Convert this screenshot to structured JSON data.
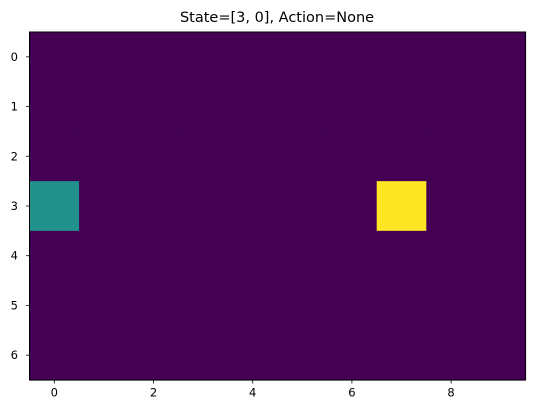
{
  "chart_data": {
    "type": "heatmap",
    "title": "State=[3, 0], Action=None",
    "rows": 7,
    "cols": 10,
    "cells": [
      [
        0,
        0,
        0,
        0,
        0,
        0,
        0,
        0,
        0,
        0
      ],
      [
        0,
        0,
        0,
        0,
        0,
        0,
        0,
        0,
        0,
        0
      ],
      [
        0,
        0,
        0,
        0,
        0,
        0,
        0,
        0,
        0,
        0
      ],
      [
        1,
        0,
        0,
        0,
        0,
        0,
        0,
        2,
        0,
        0
      ],
      [
        0,
        0,
        0,
        0,
        0,
        0,
        0,
        0,
        0,
        0
      ],
      [
        0,
        0,
        0,
        0,
        0,
        0,
        0,
        0,
        0,
        0
      ],
      [
        0,
        0,
        0,
        0,
        0,
        0,
        0,
        0,
        0,
        0
      ]
    ],
    "value_colors": {
      "0": "#440154",
      "1": "#21918c",
      "2": "#fde725"
    },
    "x_ticks": [
      0,
      2,
      4,
      6,
      8
    ],
    "y_ticks": [
      0,
      1,
      2,
      3,
      4,
      5,
      6
    ],
    "xlim": [
      -0.5,
      9.5
    ],
    "ylim": [
      6.5,
      -0.5
    ],
    "xlabel": "",
    "ylabel": "",
    "colormap": "viridis"
  }
}
